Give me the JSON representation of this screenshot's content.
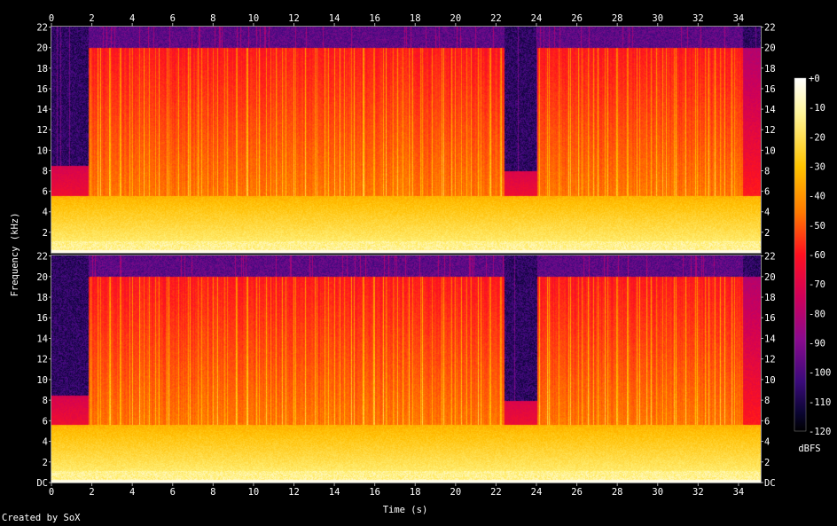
{
  "chart_data": {
    "type": "heatmap",
    "title": "",
    "xlabel": "Time (s)",
    "ylabel": "Frequency (kHz)",
    "xlim": [
      0,
      35.1
    ],
    "ylim": [
      0,
      22.05
    ],
    "x_ticks": [
      "0",
      "2",
      "4",
      "6",
      "8",
      "10",
      "12",
      "14",
      "16",
      "18",
      "20",
      "22",
      "24",
      "26",
      "28",
      "30",
      "32",
      "34"
    ],
    "y_ticks_upper": [
      "2",
      "4",
      "6",
      "8",
      "10",
      "12",
      "14",
      "16",
      "18",
      "20",
      "22"
    ],
    "y_ticks_lower": [
      "DC",
      "2",
      "4",
      "6",
      "8",
      "10",
      "12",
      "14",
      "16",
      "18",
      "20",
      "22"
    ],
    "channels": [
      "channel 1",
      "channel 2"
    ],
    "colorbar": {
      "label": "dBFS",
      "ticks": [
        "+0",
        "-10",
        "-20",
        "-30",
        "-40",
        "-50",
        "-60",
        "-70",
        "-80",
        "-90",
        "-100",
        "-110",
        "-120"
      ],
      "range": [
        -120,
        0
      ]
    },
    "segments": [
      {
        "start": 0.0,
        "end": 1.8,
        "low_cutoff_khz": 5.6,
        "high_cutoff_khz": 8.5,
        "level": "quiet"
      },
      {
        "start": 1.8,
        "end": 22.4,
        "low_cutoff_khz": 5.6,
        "high_cutoff_khz": 20.0,
        "level": "loud"
      },
      {
        "start": 22.4,
        "end": 24.0,
        "low_cutoff_khz": 5.6,
        "high_cutoff_khz": 8.0,
        "level": "quiet"
      },
      {
        "start": 24.0,
        "end": 34.2,
        "low_cutoff_khz": 5.6,
        "high_cutoff_khz": 20.0,
        "level": "loud"
      },
      {
        "start": 34.2,
        "end": 35.1,
        "low_cutoff_khz": 5.6,
        "high_cutoff_khz": 20.0,
        "level": "fading"
      }
    ]
  },
  "credit": "Created by SoX"
}
